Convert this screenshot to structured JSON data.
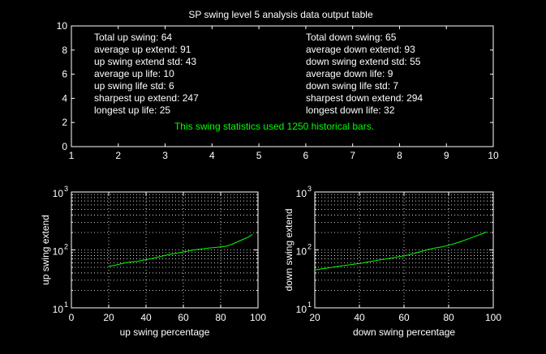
{
  "figure": {
    "title": "SP swing level 5 analysis data output table",
    "colors": {
      "background": "#000000",
      "axes": "#ffffff",
      "series": "#00ff00"
    }
  },
  "stats": {
    "left": [
      "Total up swing: 64",
      "average up extend: 91",
      "up swing extend std: 43",
      "average up life: 10",
      "up swing life std: 6",
      "sharpest up extend: 247",
      "longest up life: 25"
    ],
    "right": [
      "Total down swing: 65",
      "average down extend: 93",
      "down swing extend std: 55",
      "average down life: 9",
      "down swing life std: 7",
      "sharpest down extend: 294",
      "longest down life: 32"
    ],
    "footer": "This swing statistics used 1250 historical bars."
  },
  "chart_data": [
    {
      "type": "table",
      "title": "SP swing level 5 analysis data output table",
      "xlim": [
        1,
        10
      ],
      "ylim": [
        0,
        10
      ],
      "xticks": [
        "1",
        "2",
        "3",
        "4",
        "5",
        "6",
        "7",
        "8",
        "9",
        "10"
      ],
      "yticks": [
        "0",
        "2",
        "4",
        "6",
        "8",
        "10"
      ],
      "grid": false
    },
    {
      "type": "line",
      "xlabel": "up swing percentage",
      "ylabel": "up swing extend",
      "xlim": [
        0,
        100
      ],
      "ylim": [
        10,
        1000
      ],
      "yscale": "log",
      "grid": true,
      "xticks": [
        "0",
        "20",
        "40",
        "60",
        "80",
        "100"
      ],
      "yticks": [
        {
          "base": "10",
          "exp": "1"
        },
        {
          "base": "10",
          "exp": "2"
        },
        {
          "base": "10",
          "exp": "3"
        }
      ],
      "series": [
        {
          "x": [
            20,
            23,
            26,
            29,
            32,
            35,
            38,
            41,
            44,
            47,
            50,
            53,
            56,
            59,
            62,
            65,
            68,
            71,
            74,
            77,
            80,
            83,
            86,
            89,
            92,
            95,
            97
          ],
          "y": [
            52,
            54,
            57,
            60,
            62,
            63,
            66,
            69,
            72,
            76,
            80,
            84,
            87,
            91,
            95,
            99,
            102,
            105,
            108,
            110,
            113,
            116,
            125,
            138,
            152,
            168,
            185
          ]
        }
      ]
    },
    {
      "type": "line",
      "xlabel": "down swing percentage",
      "ylabel": "down swing extend",
      "xlim": [
        20,
        100
      ],
      "ylim": [
        10,
        1000
      ],
      "yscale": "log",
      "grid": true,
      "xticks": [
        "20",
        "40",
        "60",
        "80",
        "100"
      ],
      "yticks": [
        {
          "base": "10",
          "exp": "1"
        },
        {
          "base": "10",
          "exp": "2"
        },
        {
          "base": "10",
          "exp": "3"
        }
      ],
      "series": [
        {
          "x": [
            20,
            23,
            26,
            29,
            32,
            35,
            38,
            41,
            44,
            47,
            50,
            53,
            56,
            59,
            62,
            65,
            68,
            71,
            74,
            77,
            80,
            83,
            86,
            89,
            92,
            95,
            97
          ],
          "y": [
            45,
            47,
            49,
            51,
            53,
            55,
            57,
            59,
            62,
            65,
            68,
            71,
            74,
            78,
            82,
            88,
            95,
            102,
            108,
            113,
            120,
            130,
            142,
            156,
            172,
            190,
            205
          ]
        }
      ]
    }
  ]
}
